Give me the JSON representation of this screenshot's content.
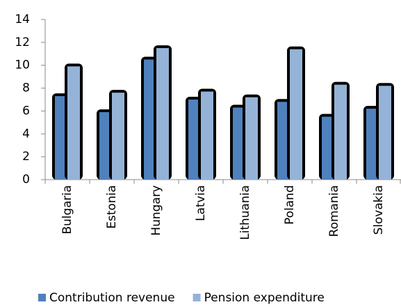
{
  "chart_data": {
    "type": "bar",
    "categories": [
      "Bulgaria",
      "Estonia",
      "Hungary",
      "Latvia",
      "Lithuania",
      "Poland",
      "Romania",
      "Slovakia"
    ],
    "series": [
      {
        "name": "Contribution revenue",
        "color": "#4f81bd",
        "values": [
          7.3,
          5.9,
          10.5,
          7.0,
          6.3,
          6.8,
          5.5,
          6.2
        ]
      },
      {
        "name": "Pension expenditure",
        "color": "#95b3d7",
        "values": [
          9.9,
          7.6,
          11.5,
          7.7,
          7.2,
          11.4,
          8.3,
          8.2
        ]
      }
    ],
    "ylim": [
      0,
      14
    ],
    "yticks": [
      0,
      2,
      4,
      6,
      8,
      10,
      12,
      14
    ],
    "grid": false,
    "legend": "bottom"
  }
}
